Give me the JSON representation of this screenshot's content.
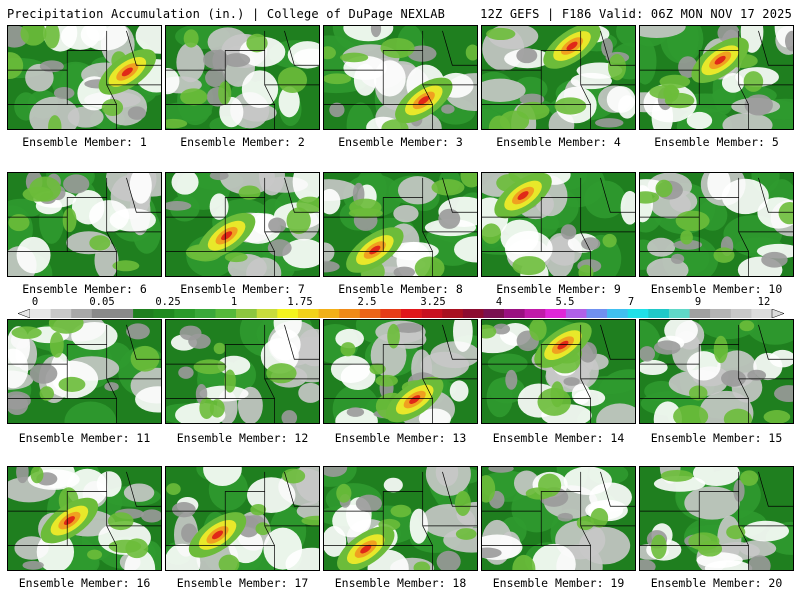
{
  "header": {
    "left": "Precipitation Accumulation (in.) | College of DuPage NEXLAB",
    "right": "12Z GEFS | F186 Valid: 06Z MON NOV 17 2025"
  },
  "colorbar": {
    "labels": [
      "0",
      "0.05",
      "0.25",
      "1",
      "1.75",
      "2.5",
      "3.25",
      "4",
      "5.5",
      "7",
      "9",
      "12"
    ],
    "colors": [
      "#e6e6e6",
      "#c8c8c8",
      "#a8a8a8",
      "#8a8a8a",
      "#8a8a8a",
      "#1f7f1f",
      "#208a20",
      "#2a9a2a",
      "#3aa83a",
      "#55b83a",
      "#8cc63f",
      "#c8dc3c",
      "#f3f31e",
      "#f2d21a",
      "#f2b018",
      "#ef8a18",
      "#ec6418",
      "#e63c18",
      "#e0161a",
      "#c81020",
      "#a81020",
      "#8c0c30",
      "#7a1050",
      "#9a1080",
      "#c01aa8",
      "#e026d8",
      "#b060e8",
      "#7090f0",
      "#40c0f0",
      "#20e0e8",
      "#20c8c8",
      "#60d8c8",
      "#a0a0a0",
      "#b4b4b4",
      "#c8c8c8",
      "#dcdcdc"
    ]
  },
  "members": [
    {
      "label": "Ensemble Member: 1"
    },
    {
      "label": "Ensemble Member: 2"
    },
    {
      "label": "Ensemble Member: 3"
    },
    {
      "label": "Ensemble Member: 4"
    },
    {
      "label": "Ensemble Member: 5"
    },
    {
      "label": "Ensemble Member: 6"
    },
    {
      "label": "Ensemble Member: 7"
    },
    {
      "label": "Ensemble Member: 8"
    },
    {
      "label": "Ensemble Member: 9"
    },
    {
      "label": "Ensemble Member: 10"
    },
    {
      "label": "Ensemble Member: 11"
    },
    {
      "label": "Ensemble Member: 12"
    },
    {
      "label": "Ensemble Member: 13"
    },
    {
      "label": "Ensemble Member: 14"
    },
    {
      "label": "Ensemble Member: 15"
    },
    {
      "label": "Ensemble Member: 16"
    },
    {
      "label": "Ensemble Member: 17"
    },
    {
      "label": "Ensemble Member: 18"
    },
    {
      "label": "Ensemble Member: 19"
    },
    {
      "label": "Ensemble Member: 20"
    }
  ]
}
